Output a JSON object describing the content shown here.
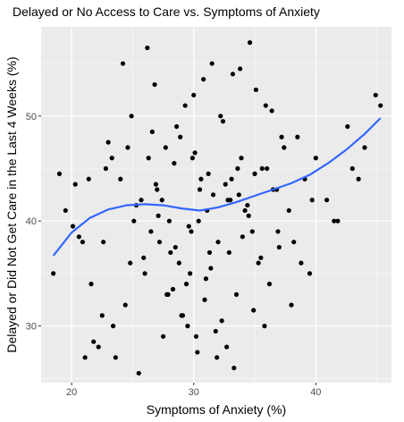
{
  "chart_data": {
    "type": "scatter",
    "title": "Delayed or No Access to Care vs. Symptoms of Anxiety",
    "xlabel": "Symptoms of Anxiety (%)",
    "ylabel": "Delayed or Did Not Get Care in the Last 4 Weeks (%)",
    "xlim": [
      17.5,
      46.2
    ],
    "ylim": [
      24.6,
      58.5
    ],
    "x_ticks": [
      20,
      30,
      40
    ],
    "y_ticks": [
      30,
      40,
      50
    ],
    "x_tick_labels": [
      "20",
      "30",
      "40"
    ],
    "y_tick_labels": [
      "30",
      "40",
      "50"
    ],
    "grid": true,
    "legend": "none",
    "colors": {
      "panel": "#ebebeb",
      "grid_major": "#ffffff",
      "points": "#000000",
      "smooth_line": "#3366ff"
    },
    "series": [
      {
        "kind": "points",
        "x": [
          18.5,
          19.5,
          20.1,
          20.9,
          21.6,
          22.5,
          23.4,
          24.0,
          24.8,
          25.7,
          26.3,
          27.2,
          28.0,
          28.9,
          29.7,
          30.6,
          31.3,
          32.2,
          33.0,
          33.9,
          34.8,
          35.6,
          36.5,
          37.4,
          38.2,
          39.1,
          40.0,
          40.9,
          41.8,
          42.6,
          43.5,
          44.9,
          45.3,
          44.0,
          43.0,
          39.5,
          38.8,
          37.8,
          36.9,
          35.8,
          22.2,
          20.3,
          21.1,
          23.0,
          25.1,
          26.6,
          28.3,
          19.0,
          21.8,
          24.4,
          26.0,
          27.5,
          29.1,
          30.3,
          31.8,
          33.5,
          34.9,
          36.2,
          37.0,
          38.0,
          20.6,
          23.6,
          25.5,
          27.9,
          29.5,
          31.0,
          32.7,
          34.2,
          35.3,
          36.8,
          22.8,
          24.9,
          26.8,
          28.6,
          30.0,
          31.5,
          33.2,
          34.6,
          35.9,
          37.2,
          24.2,
          26.2,
          27.7,
          29.3,
          30.8,
          32.4,
          33.8,
          35.1,
          36.4,
          25.3,
          27.0,
          28.4,
          29.9,
          31.6,
          33.1,
          34.5,
          26.5,
          28.1,
          29.6,
          31.1,
          32.6,
          34.0,
          35.5,
          27.4,
          28.8,
          30.4,
          32.0,
          33.6,
          27.8,
          29.4,
          31.4,
          32.9,
          29.0,
          30.9,
          32.3,
          30.2,
          31.9,
          33.3,
          24.6,
          25.9,
          30.5,
          36.0,
          21.4,
          41.5,
          39.7,
          38.5,
          23.3,
          22.6,
          33.7,
          29.8,
          31.2,
          28.5,
          27.1,
          34.4,
          30.1,
          26.9,
          32.8,
          35.0
        ],
        "y": [
          35.0,
          41.0,
          39.5,
          38.0,
          34.0,
          31.0,
          30.0,
          44.0,
          36.0,
          42.0,
          46.0,
          38.0,
          40.0,
          48.0,
          35.0,
          44.0,
          37.0,
          50.0,
          42.0,
          46.0,
          39.0,
          45.0,
          43.0,
          47.0,
          38.0,
          44.0,
          46.0,
          42.0,
          40.0,
          49.0,
          44.0,
          52.0,
          51.0,
          47.0,
          45.0,
          35.0,
          36.0,
          41.0,
          39.0,
          30.0,
          28.0,
          43.5,
          27.0,
          47.5,
          40.0,
          48.5,
          33.5,
          44.5,
          28.5,
          32.0,
          35.0,
          29.0,
          31.0,
          27.5,
          29.5,
          33.0,
          31.5,
          34.0,
          37.5,
          32.0,
          38.5,
          27.0,
          25.5,
          33.0,
          30.0,
          34.5,
          28.0,
          41.0,
          36.0,
          43.0,
          45.0,
          50.0,
          53.0,
          49.0,
          52.0,
          55.0,
          54.0,
          57.0,
          51.0,
          48.0,
          55.0,
          56.5,
          47.0,
          51.0,
          53.5,
          49.5,
          54.5,
          52.5,
          50.5,
          41.5,
          43.0,
          45.5,
          46.0,
          42.5,
          44.0,
          40.5,
          39.0,
          37.0,
          39.5,
          41.0,
          43.5,
          38.5,
          36.5,
          42.0,
          36.0,
          40.0,
          38.0,
          45.0,
          33.0,
          34.0,
          35.5,
          37.0,
          31.0,
          32.5,
          30.5,
          29.0,
          27.0,
          26.0,
          47.0,
          36.5,
          43.0,
          45.0,
          44.0,
          40.0,
          42.0,
          48.0,
          46.0,
          38.0,
          42.5,
          39.0,
          44.5,
          37.5,
          40.5,
          41.5,
          46.5,
          43.5,
          42.0,
          44.5
        ]
      },
      {
        "kind": "smooth",
        "x": [
          18.5,
          20.0,
          21.5,
          23.0,
          24.5,
          26.0,
          27.5,
          29.0,
          30.5,
          32.0,
          33.5,
          35.0,
          36.5,
          38.0,
          39.5,
          41.0,
          42.5,
          44.0,
          45.3
        ],
        "y": [
          36.7,
          38.9,
          40.3,
          41.1,
          41.5,
          41.6,
          41.5,
          41.2,
          41.0,
          41.3,
          41.8,
          42.4,
          43.0,
          43.6,
          44.4,
          45.5,
          46.8,
          48.3,
          49.8
        ]
      }
    ]
  }
}
